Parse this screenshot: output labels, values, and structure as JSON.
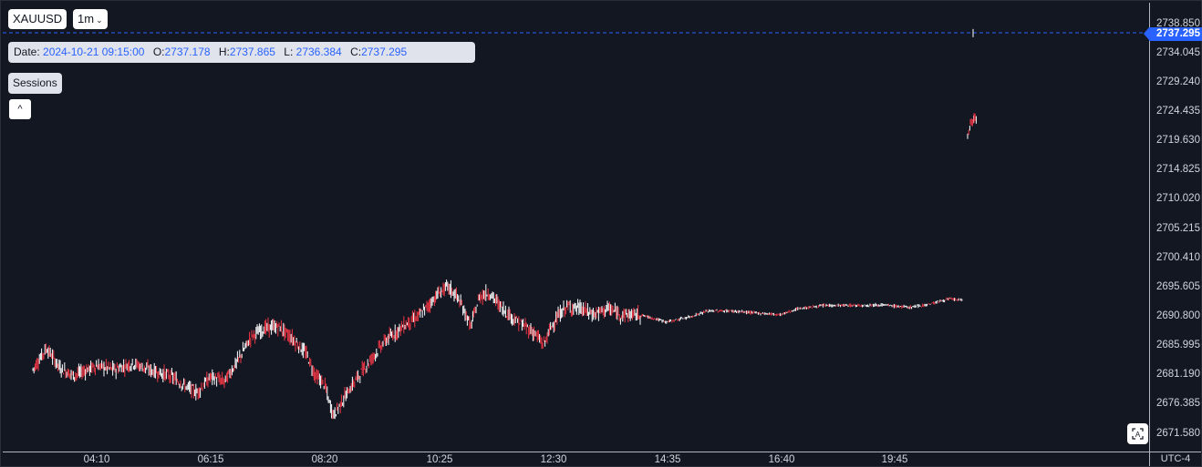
{
  "header": {
    "symbol": "XAUUSD",
    "interval": "1m",
    "sessions_label": "Sessions",
    "collapse_glyph": "^"
  },
  "ohlc": {
    "date_label": "Date:",
    "date_value": "2024-10-21 09:15:00",
    "open_label": "O:",
    "open_value": "2737.178",
    "high_label": "H:",
    "high_value": "2737.865",
    "low_label": "L:",
    "low_value": "2736.384",
    "close_label": "C:",
    "close_value": "2737.295"
  },
  "timezone": "UTC-4",
  "colors": {
    "background": "#131722",
    "up_candle": "#ffffff",
    "down_candle": "#f23645",
    "last_price": "#2962ff",
    "text": "#d1d4dc"
  },
  "icons": {
    "interval_dropdown": "chevron-down-icon",
    "collapse": "chevron-up-icon",
    "screenshot": "camera-frame-icon"
  },
  "chart_data": {
    "type": "candlestick",
    "x_ticks": [
      "04:10",
      "06:15",
      "08:20",
      "10:25",
      "12:30",
      "14:35",
      "16:40",
      "19:45"
    ],
    "y_ticks": [
      "2738.850",
      "2734.045",
      "2729.240",
      "2724.435",
      "2719.630",
      "2714.825",
      "2710.020",
      "2705.215",
      "2700.410",
      "2695.605",
      "2690.800",
      "2685.995",
      "2681.190",
      "2676.385",
      "2671.580"
    ],
    "y_range": [
      2669.5,
      2741.5
    ],
    "last_price": "2737.295",
    "series_path": [
      [
        "03:00",
        2682.0
      ],
      [
        "03:15",
        2685.5
      ],
      [
        "03:30",
        2682.2
      ],
      [
        "03:45",
        2681.0
      ],
      [
        "04:00",
        2682.0
      ],
      [
        "04:10",
        2682.6
      ],
      [
        "04:30",
        2682.0
      ],
      [
        "04:50",
        2683.0
      ],
      [
        "05:10",
        2681.8
      ],
      [
        "05:30",
        2681.0
      ],
      [
        "05:50",
        2679.0
      ],
      [
        "06:00",
        2678.2
      ],
      [
        "06:15",
        2680.8
      ],
      [
        "06:30",
        2680.0
      ],
      [
        "06:45",
        2683.5
      ],
      [
        "07:00",
        2687.5
      ],
      [
        "07:15",
        2688.8
      ],
      [
        "07:30",
        2689.0
      ],
      [
        "07:45",
        2687.0
      ],
      [
        "08:00",
        2684.5
      ],
      [
        "08:10",
        2681.0
      ],
      [
        "08:20",
        2679.5
      ],
      [
        "08:25",
        2676.5
      ],
      [
        "08:30",
        2674.5
      ],
      [
        "08:40",
        2677.0
      ],
      [
        "08:55",
        2680.5
      ],
      [
        "09:10",
        2683.5
      ],
      [
        "09:25",
        2686.5
      ],
      [
        "09:45",
        2689.0
      ],
      [
        "10:05",
        2691.0
      ],
      [
        "10:25",
        2694.5
      ],
      [
        "10:35",
        2695.6
      ],
      [
        "10:45",
        2694.0
      ],
      [
        "10:55",
        2691.0
      ],
      [
        "11:00",
        2689.0
      ],
      [
        "11:10",
        2694.0
      ],
      [
        "11:20",
        2694.6
      ],
      [
        "11:35",
        2692.0
      ],
      [
        "11:50",
        2690.0
      ],
      [
        "12:10",
        2688.0
      ],
      [
        "12:20",
        2686.0
      ],
      [
        "12:30",
        2689.5
      ],
      [
        "12:45",
        2692.3
      ],
      [
        "13:00",
        2692.0
      ],
      [
        "13:15",
        2691.0
      ],
      [
        "13:30",
        2692.0
      ],
      [
        "13:45",
        2691.0
      ],
      [
        "14:05",
        2691.0
      ],
      [
        "14:35",
        2689.8
      ],
      [
        "15:00",
        2690.6
      ],
      [
        "15:20",
        2691.6
      ],
      [
        "15:45",
        2691.6
      ],
      [
        "16:10",
        2691.3
      ],
      [
        "16:40",
        2691.0
      ],
      [
        "17:00",
        2692.0
      ],
      [
        "17:30",
        2692.5
      ],
      [
        "18:00",
        2692.5
      ],
      [
        "18:30",
        2692.6
      ],
      [
        "19:00",
        2692.2
      ],
      [
        "19:20",
        2692.6
      ],
      [
        "19:45",
        2693.6
      ],
      [
        "20:00",
        2693.3
      ]
    ],
    "gap_segment": [
      [
        "20:05",
        2720.5
      ],
      [
        "20:08",
        2722.5
      ],
      [
        "20:12",
        2723.2
      ],
      [
        "20:15",
        2722.8
      ]
    ],
    "last_tick": [
      "20:05",
      2737.3
    ]
  }
}
